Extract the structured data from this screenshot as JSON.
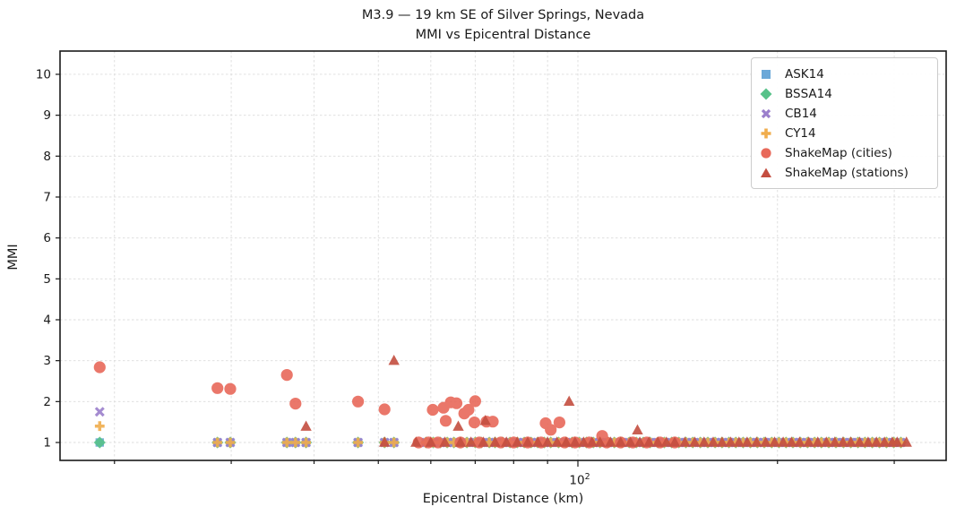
{
  "chart_data": {
    "type": "scatter",
    "title_line1": "M3.9 — 19 km SE of Silver Springs, Nevada",
    "title_line2": "MMI vs Epicentral Distance",
    "xlabel": "Epicentral Distance (km)",
    "ylabel": "MMI",
    "x_scale": "log",
    "xlim": [
      16.5,
      360
    ],
    "ylim": [
      0.56,
      10.57
    ],
    "grid": true,
    "legend_position": "upper right",
    "y_ticks": [
      1,
      2,
      3,
      4,
      5,
      6,
      7,
      8,
      9,
      10
    ],
    "x_major_ticks": [
      100
    ],
    "x_major_label_base": "10",
    "x_major_label_exp": "2",
    "x_minor_ticks": [
      20,
      30,
      40,
      50,
      60,
      70,
      80,
      90,
      200,
      300
    ],
    "gmpe_distances": [
      19,
      28.6,
      29.9,
      36.4,
      37.5,
      38.9,
      46.6,
      51.1,
      52.8,
      59,
      60.5,
      62,
      63.5,
      65,
      66.5,
      68,
      70,
      71.5,
      73.5,
      75,
      77,
      79,
      81,
      83,
      85,
      87,
      89,
      91,
      93.5,
      96,
      98,
      100.5,
      103,
      105.5,
      108,
      111,
      113.5,
      116.5,
      119.5,
      122.5,
      125.5,
      128.5,
      132,
      135,
      138.5,
      142,
      145.5,
      149,
      153,
      157,
      161,
      165,
      169,
      173,
      177.5,
      182,
      186.5,
      191,
      196,
      201,
      206,
      211,
      216.5,
      222,
      227.5,
      233,
      239,
      245,
      251.5,
      258,
      264.5,
      271,
      278,
      285,
      292,
      299.5,
      307
    ],
    "series": [
      {
        "label": "ASK14",
        "marker": "square",
        "color": "#6BA8D8",
        "source": "gmpe",
        "default_mmi": 1.0,
        "overrides": {}
      },
      {
        "label": "BSSA14",
        "marker": "diamond",
        "color": "#57C289",
        "source": "gmpe",
        "default_mmi": 1.0,
        "overrides": {}
      },
      {
        "label": "CB14",
        "marker": "x",
        "color": "#9B7FCC",
        "source": "gmpe",
        "default_mmi": 1.0,
        "overrides": {
          "19": 1.75
        }
      },
      {
        "label": "CY14",
        "marker": "plus",
        "color": "#F0AD4D",
        "source": "gmpe",
        "default_mmi": 1.0,
        "overrides": {
          "19": 1.4
        }
      },
      {
        "label": "ShakeMap (cities)",
        "marker": "circle",
        "color": "#E8695A",
        "points": [
          [
            19,
            2.84
          ],
          [
            28.6,
            2.33
          ],
          [
            29.9,
            2.31
          ],
          [
            36.4,
            2.65
          ],
          [
            37.5,
            1.95
          ],
          [
            46.6,
            2.0
          ],
          [
            51.1,
            1.81
          ],
          [
            57.5,
            1.0
          ],
          [
            59.5,
            1.0
          ],
          [
            60.4,
            1.8
          ],
          [
            61.5,
            1.0
          ],
          [
            62.7,
            1.85
          ],
          [
            63.2,
            1.53
          ],
          [
            64.3,
            1.98
          ],
          [
            65.6,
            1.96
          ],
          [
            66.5,
            1.0
          ],
          [
            67.4,
            1.71
          ],
          [
            68.4,
            1.8
          ],
          [
            69.8,
            1.49
          ],
          [
            70,
            2.01
          ],
          [
            71,
            1.0
          ],
          [
            72.8,
            1.51
          ],
          [
            74.4,
            1.51
          ],
          [
            76.5,
            1.0
          ],
          [
            80,
            1.0
          ],
          [
            84,
            1.0
          ],
          [
            88,
            1.0
          ],
          [
            89.4,
            1.47
          ],
          [
            91,
            1.31
          ],
          [
            93.8,
            1.49
          ],
          [
            95.5,
            1.0
          ],
          [
            99,
            1.0
          ],
          [
            104,
            1.0
          ],
          [
            108.8,
            1.16
          ],
          [
            110.5,
            1.0
          ],
          [
            116,
            1.0
          ],
          [
            121,
            1.0
          ],
          [
            127,
            1.0
          ],
          [
            133,
            1.0
          ],
          [
            140,
            1.0
          ]
        ]
      },
      {
        "label": "ShakeMap (stations)",
        "marker": "triangle",
        "color": "#C44E40",
        "points": [
          [
            38.9,
            1.39
          ],
          [
            51.1,
            1.0
          ],
          [
            52.8,
            3.0
          ],
          [
            57,
            1.0
          ],
          [
            60,
            1.0
          ],
          [
            63,
            1.0
          ],
          [
            66,
            1.39
          ],
          [
            66.5,
            1.0
          ],
          [
            69,
            1.0
          ],
          [
            72,
            1.0
          ],
          [
            72.5,
            1.53
          ],
          [
            75,
            1.0
          ],
          [
            78,
            1.0
          ],
          [
            81,
            1.0
          ],
          [
            84,
            1.0
          ],
          [
            87,
            1.0
          ],
          [
            90,
            1.0
          ],
          [
            93,
            1.0
          ],
          [
            96,
            1.0
          ],
          [
            97,
            2.0
          ],
          [
            99,
            1.0
          ],
          [
            102,
            1.0
          ],
          [
            105,
            1.0
          ],
          [
            108,
            1.0
          ],
          [
            112,
            1.0
          ],
          [
            116,
            1.0
          ],
          [
            120,
            1.0
          ],
          [
            123,
            1.3
          ],
          [
            124,
            1.0
          ],
          [
            128,
            1.0
          ],
          [
            132,
            1.0
          ],
          [
            136,
            1.0
          ],
          [
            140,
            1.0
          ],
          [
            145,
            1.0
          ],
          [
            150,
            1.0
          ],
          [
            155,
            1.0
          ],
          [
            160,
            1.0
          ],
          [
            165,
            1.0
          ],
          [
            170,
            1.0
          ],
          [
            175,
            1.0
          ],
          [
            180,
            1.0
          ],
          [
            186,
            1.0
          ],
          [
            192,
            1.0
          ],
          [
            198,
            1.0
          ],
          [
            204,
            1.0
          ],
          [
            210,
            1.0
          ],
          [
            216,
            1.0
          ],
          [
            223,
            1.0
          ],
          [
            230,
            1.0
          ],
          [
            237,
            1.0
          ],
          [
            244,
            1.0
          ],
          [
            251,
            1.0
          ],
          [
            258,
            1.0
          ],
          [
            266,
            1.0
          ],
          [
            274,
            1.0
          ],
          [
            282,
            1.0
          ],
          [
            290,
            1.0
          ],
          [
            298,
            1.0
          ],
          [
            303,
            1.0
          ],
          [
            313,
            1.0
          ]
        ]
      }
    ]
  }
}
